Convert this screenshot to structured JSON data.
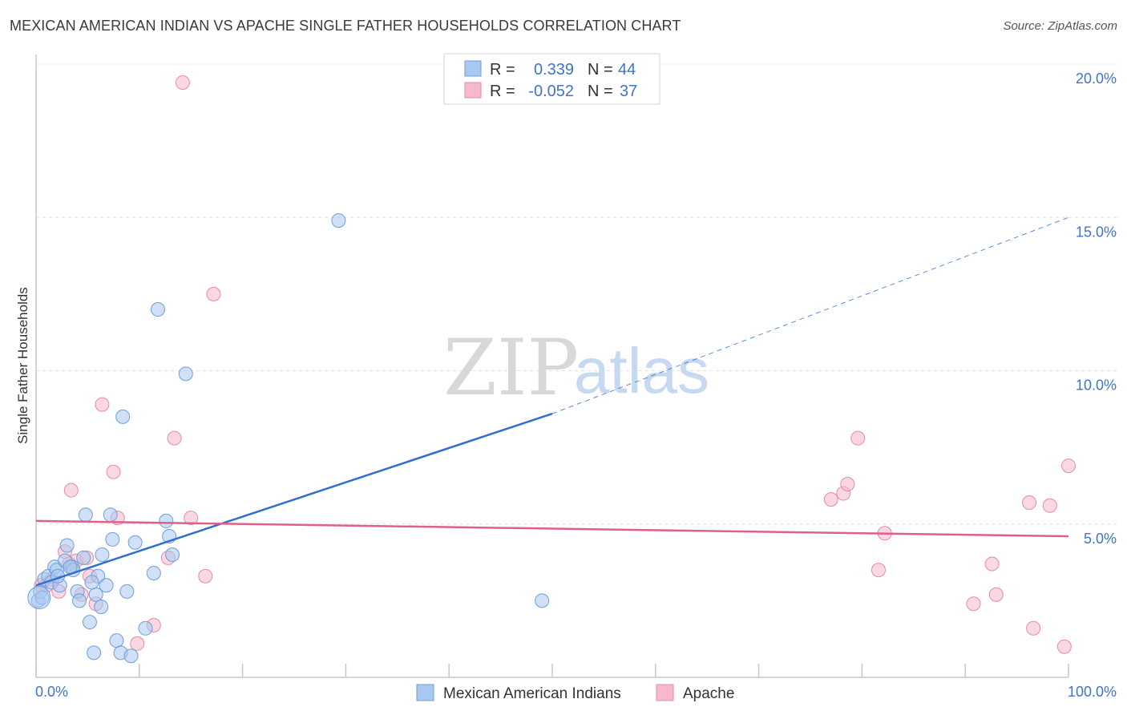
{
  "title": "MEXICAN AMERICAN INDIAN VS APACHE SINGLE FATHER HOUSEHOLDS CORRELATION CHART",
  "source": "Source: ZipAtlas.com",
  "watermark": {
    "zip": "ZIP",
    "atlas": "atlas"
  },
  "legend": {
    "rows": [
      {
        "r_label": "R =",
        "r_value": "0.339",
        "n_label": "N =",
        "n_value": "44",
        "color": "#a9c8f0"
      },
      {
        "r_label": "R =",
        "r_value": "-0.052",
        "n_label": "N =",
        "n_value": "37",
        "color": "#f6b8cb"
      }
    ]
  },
  "bottom_legend": [
    "Mexican American Indians",
    "Apache"
  ],
  "chart_data": {
    "type": "scatter",
    "title": "MEXICAN AMERICAN INDIAN VS APACHE SINGLE FATHER HOUSEHOLDS CORRELATION CHART",
    "xlabel": "",
    "ylabel": "Single Father Households",
    "xlim": [
      0,
      100
    ],
    "ylim": [
      0,
      20
    ],
    "x_tick_labels": [
      "0.0%",
      "100.0%"
    ],
    "y_tick_labels": [
      "5.0%",
      "10.0%",
      "15.0%",
      "20.0%"
    ],
    "y_ticks": [
      5,
      10,
      15,
      20
    ],
    "colors": {
      "blue": "#a9c8f0",
      "blue_stroke": "#6e9ed8",
      "blue_line": "#2f6fd0",
      "pink": "#f6b8cb",
      "pink_stroke": "#e78aa8",
      "pink_line": "#e0608a"
    },
    "series": [
      {
        "name": "Mexican American Indians",
        "color": "#a9c8f0",
        "points": [
          [
            0.2,
            2.5
          ],
          [
            0.4,
            2.8
          ],
          [
            0.6,
            2.6
          ],
          [
            0.8,
            3.2
          ],
          [
            1.2,
            3.3
          ],
          [
            1.5,
            3.1
          ],
          [
            1.8,
            3.6
          ],
          [
            2.0,
            3.5
          ],
          [
            2.3,
            3.0
          ],
          [
            2.8,
            3.8
          ],
          [
            3.0,
            4.3
          ],
          [
            3.5,
            3.6
          ],
          [
            3.6,
            3.5
          ],
          [
            4.0,
            2.8
          ],
          [
            4.2,
            2.5
          ],
          [
            4.6,
            3.9
          ],
          [
            4.8,
            5.3
          ],
          [
            5.2,
            1.8
          ],
          [
            5.6,
            0.8
          ],
          [
            5.8,
            2.7
          ],
          [
            6.0,
            3.3
          ],
          [
            6.3,
            2.3
          ],
          [
            6.4,
            4.0
          ],
          [
            6.8,
            3.0
          ],
          [
            7.2,
            5.3
          ],
          [
            7.4,
            4.5
          ],
          [
            7.8,
            1.2
          ],
          [
            8.2,
            0.8
          ],
          [
            8.4,
            8.5
          ],
          [
            8.8,
            2.8
          ],
          [
            9.2,
            0.7
          ],
          [
            9.6,
            4.4
          ],
          [
            10.6,
            1.6
          ],
          [
            11.4,
            3.4
          ],
          [
            11.8,
            12.0
          ],
          [
            12.6,
            5.1
          ],
          [
            12.9,
            4.6
          ],
          [
            13.2,
            4.0
          ],
          [
            14.5,
            9.9
          ],
          [
            29.3,
            14.9
          ],
          [
            49.0,
            2.5
          ],
          [
            2.1,
            3.3
          ],
          [
            3.3,
            3.6
          ],
          [
            5.4,
            3.1
          ]
        ]
      },
      {
        "name": "Apache",
        "color": "#f6b8cb",
        "points": [
          [
            0.5,
            3.0
          ],
          [
            1.5,
            3.2
          ],
          [
            2.2,
            2.8
          ],
          [
            2.8,
            4.1
          ],
          [
            3.4,
            6.1
          ],
          [
            3.9,
            3.8
          ],
          [
            4.4,
            2.7
          ],
          [
            4.9,
            3.9
          ],
          [
            5.2,
            3.3
          ],
          [
            5.8,
            2.4
          ],
          [
            6.4,
            8.9
          ],
          [
            7.5,
            6.7
          ],
          [
            7.9,
            5.2
          ],
          [
            9.8,
            1.1
          ],
          [
            11.4,
            1.7
          ],
          [
            12.8,
            3.9
          ],
          [
            13.4,
            7.8
          ],
          [
            14.2,
            19.4
          ],
          [
            15.0,
            5.2
          ],
          [
            16.4,
            3.3
          ],
          [
            17.2,
            12.5
          ],
          [
            77.0,
            5.8
          ],
          [
            78.2,
            6.0
          ],
          [
            78.6,
            6.3
          ],
          [
            79.6,
            7.8
          ],
          [
            81.6,
            3.5
          ],
          [
            82.2,
            4.7
          ],
          [
            90.8,
            2.4
          ],
          [
            92.6,
            3.7
          ],
          [
            93.0,
            2.7
          ],
          [
            96.2,
            5.7
          ],
          [
            96.6,
            1.6
          ],
          [
            98.2,
            5.6
          ],
          [
            99.6,
            1.0
          ],
          [
            100.0,
            6.9
          ],
          [
            1.0,
            3.0
          ],
          [
            3.2,
            3.7
          ]
        ]
      }
    ],
    "trend_lines": [
      {
        "name": "Mexican American Indians",
        "x": [
          0,
          50
        ],
        "y": [
          3.0,
          8.6
        ],
        "dashed_extension_to": [
          100,
          15.0
        ]
      },
      {
        "name": "Apache",
        "x": [
          0,
          100
        ],
        "y": [
          5.1,
          4.6
        ]
      }
    ]
  }
}
